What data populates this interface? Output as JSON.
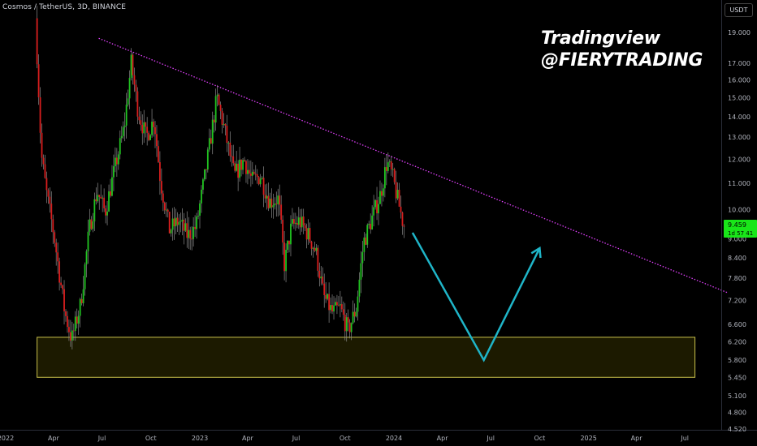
{
  "header": {
    "title": "Cosmos / TetherUS, 3D, BINANCE"
  },
  "currency_button": "USDT",
  "watermark": {
    "line1": "Tradingview",
    "line2": "@FIERYTRADING"
  },
  "price_badge": {
    "price": "9.459",
    "countdown": "1d 57 41"
  },
  "colors": {
    "up": "#21c521",
    "down": "#d91e1e",
    "trendline": "#e040fb",
    "arrow": "#1fb5c8",
    "zone_fill": "#1c1a00",
    "zone_border": "#c9c04a",
    "badge": "#19e619"
  },
  "chart_data": {
    "type": "candlestick",
    "y_scale": "log",
    "y_ticks": [
      "19.000",
      "17.000",
      "16.000",
      "15.000",
      "14.000",
      "13.000",
      "12.000",
      "11.000",
      "10.000",
      "9.000",
      "8.400",
      "7.800",
      "7.200",
      "6.600",
      "6.200",
      "5.800",
      "5.450",
      "5.100",
      "4.800",
      "4.520"
    ],
    "x_ticks": [
      "2022",
      "Apr",
      "Jul",
      "Oct",
      "2023",
      "Apr",
      "Jul",
      "Oct",
      "2024",
      "Apr",
      "Jul",
      "Oct",
      "2025",
      "Apr",
      "Jul"
    ],
    "price_path": [
      [
        "2022-03-01",
        20.0
      ],
      [
        "2022-03-05",
        16.8
      ],
      [
        "2022-03-12",
        12.2
      ],
      [
        "2022-03-22",
        10.6
      ],
      [
        "2022-04-05",
        9.1
      ],
      [
        "2022-04-25",
        6.9
      ],
      [
        "2022-05-08",
        6.25
      ],
      [
        "2022-05-25",
        7.1
      ],
      [
        "2022-06-10",
        9.3
      ],
      [
        "2022-06-25",
        10.7
      ],
      [
        "2022-07-10",
        9.9
      ],
      [
        "2022-07-28",
        11.6
      ],
      [
        "2022-08-15",
        13.5
      ],
      [
        "2022-08-28",
        17.0
      ],
      [
        "2022-09-10",
        14.3
      ],
      [
        "2022-09-25",
        13.0
      ],
      [
        "2022-10-10",
        13.9
      ],
      [
        "2022-10-22",
        11.1
      ],
      [
        "2022-11-08",
        9.3
      ],
      [
        "2022-11-25",
        9.6
      ],
      [
        "2022-12-12",
        9.1
      ],
      [
        "2022-12-28",
        9.4
      ],
      [
        "2023-01-15",
        11.5
      ],
      [
        "2023-02-05",
        15.0
      ],
      [
        "2023-02-20",
        13.3
      ],
      [
        "2023-03-10",
        11.3
      ],
      [
        "2023-03-28",
        12.0
      ],
      [
        "2023-04-12",
        11.1
      ],
      [
        "2023-04-28",
        11.3
      ],
      [
        "2023-05-15",
        10.3
      ],
      [
        "2023-06-01",
        10.4
      ],
      [
        "2023-06-12",
        8.2
      ],
      [
        "2023-06-25",
        9.4
      ],
      [
        "2023-07-10",
        9.6
      ],
      [
        "2023-07-25",
        9.2
      ],
      [
        "2023-08-10",
        8.6
      ],
      [
        "2023-08-25",
        7.3
      ],
      [
        "2023-09-10",
        6.9
      ],
      [
        "2023-09-25",
        7.0
      ],
      [
        "2023-10-10",
        6.45
      ],
      [
        "2023-10-25",
        7.0
      ],
      [
        "2023-11-08",
        8.9
      ],
      [
        "2023-11-22",
        9.6
      ],
      [
        "2023-12-10",
        10.6
      ],
      [
        "2023-12-22",
        11.9
      ],
      [
        "2024-01-01",
        11.3
      ],
      [
        "2024-01-12",
        10.3
      ],
      [
        "2024-01-22",
        9.46
      ]
    ],
    "trendline": [
      [
        "2022-06-25",
        18.6
      ],
      [
        "2025-09-20",
        7.4
      ]
    ],
    "support_zone": {
      "from": "2022-03-01",
      "to": "2025-07-20",
      "low": 5.45,
      "high": 6.3
    },
    "projection": [
      [
        "2024-02-05",
        9.2
      ],
      [
        "2024-06-18",
        5.8
      ],
      [
        "2024-10-01",
        8.7
      ]
    ],
    "last_price": 9.459
  }
}
